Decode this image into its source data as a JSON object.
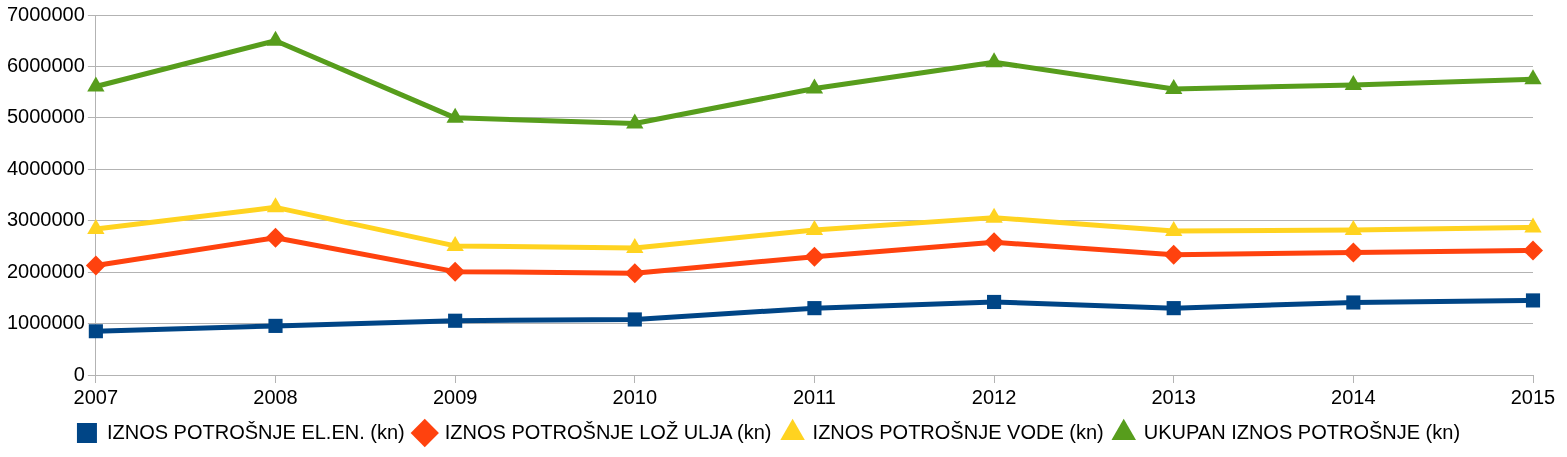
{
  "chart_data": {
    "type": "line",
    "categories": [
      "2007",
      "2008",
      "2009",
      "2010",
      "2011",
      "2012",
      "2013",
      "2014",
      "2015"
    ],
    "series": [
      {
        "name": "IZNOS POTROŠNJE EL.EN. (kn)",
        "color": "#004586",
        "marker": "square",
        "values": [
          850000,
          955000,
          1055000,
          1080000,
          1300000,
          1420000,
          1300000,
          1410000,
          1450000
        ]
      },
      {
        "name": "IZNOS POTROŠNJE LOŽ ULJA (kn)",
        "color": "#ff420e",
        "marker": "diamond",
        "values": [
          2130000,
          2670000,
          2010000,
          1980000,
          2300000,
          2580000,
          2340000,
          2380000,
          2420000
        ]
      },
      {
        "name": "IZNOS POTROŠNJE VODE (kn)",
        "color": "#ffd320",
        "marker": "triangle",
        "values": [
          2840000,
          3260000,
          2510000,
          2470000,
          2820000,
          3060000,
          2800000,
          2820000,
          2870000
        ]
      },
      {
        "name": "UKUPAN IZNOS POTROŠNJE (kn)",
        "color": "#579d1c",
        "marker": "triangle",
        "values": [
          5610000,
          6500000,
          5000000,
          4890000,
          5570000,
          6080000,
          5560000,
          5640000,
          5750000
        ]
      }
    ],
    "ylim": [
      0,
      7000000
    ],
    "yticks": [
      0,
      1000000,
      2000000,
      3000000,
      4000000,
      5000000,
      6000000,
      7000000
    ],
    "grid": "y",
    "legend": "bottom",
    "line_style": "solid"
  }
}
